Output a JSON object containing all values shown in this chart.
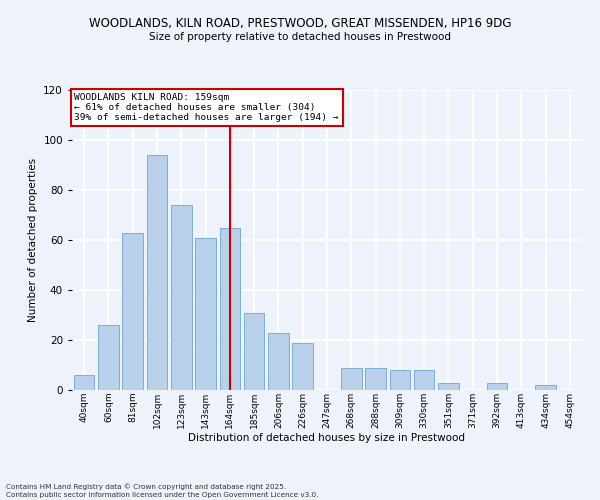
{
  "title_line1": "WOODLANDS, KILN ROAD, PRESTWOOD, GREAT MISSENDEN, HP16 9DG",
  "title_line2": "Size of property relative to detached houses in Prestwood",
  "xlabel": "Distribution of detached houses by size in Prestwood",
  "ylabel": "Number of detached properties",
  "bar_labels": [
    "40sqm",
    "60sqm",
    "81sqm",
    "102sqm",
    "123sqm",
    "143sqm",
    "164sqm",
    "185sqm",
    "206sqm",
    "226sqm",
    "247sqm",
    "268sqm",
    "288sqm",
    "309sqm",
    "330sqm",
    "351sqm",
    "371sqm",
    "392sqm",
    "413sqm",
    "434sqm",
    "454sqm"
  ],
  "bar_values": [
    6,
    26,
    63,
    94,
    74,
    61,
    65,
    31,
    23,
    19,
    0,
    9,
    9,
    8,
    8,
    3,
    0,
    3,
    0,
    2,
    0
  ],
  "bar_color": "#b8d0ea",
  "bar_edge_color": "#7aafd4",
  "vline_x": 6,
  "vline_color": "#cc0000",
  "ylim": [
    0,
    120
  ],
  "yticks": [
    0,
    20,
    40,
    60,
    80,
    100,
    120
  ],
  "annotation_title": "WOODLANDS KILN ROAD: 159sqm",
  "annotation_line2": "← 61% of detached houses are smaller (304)",
  "annotation_line3": "39% of semi-detached houses are larger (194) →",
  "footer_line1": "Contains HM Land Registry data © Crown copyright and database right 2025.",
  "footer_line2": "Contains public sector information licensed under the Open Government Licence v3.0.",
  "bg_color": "#edf2fb",
  "grid_color": "#ffffff"
}
